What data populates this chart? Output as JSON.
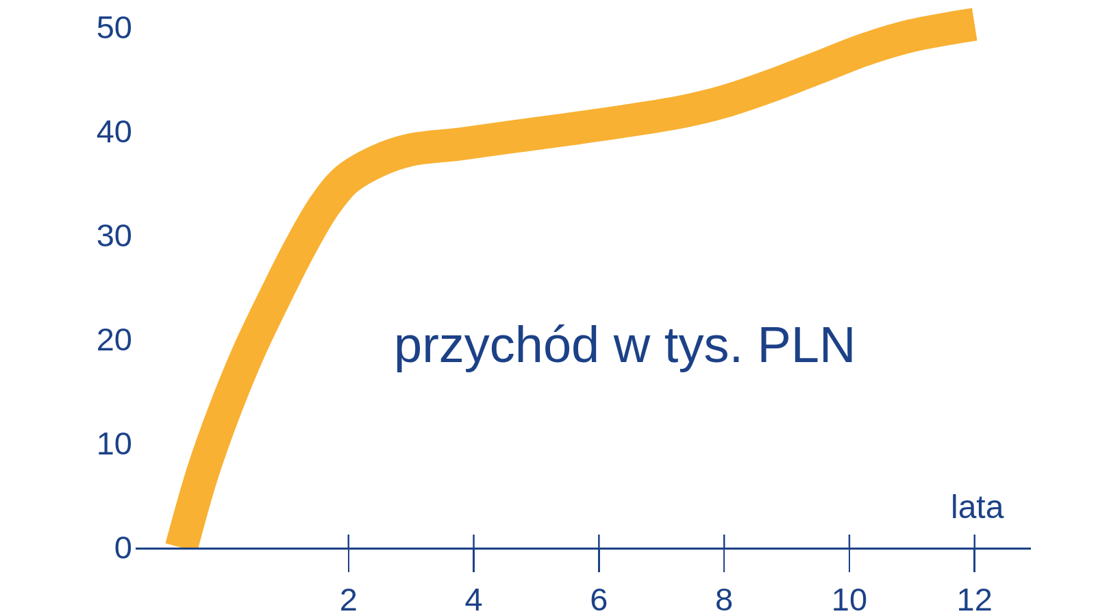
{
  "chart_data": {
    "type": "line",
    "xlabel": "lata",
    "ylabel": "przychód w tys. PLN",
    "x": [
      -0.67,
      -0.33,
      0.03,
      0.42,
      0.85,
      1.23,
      1.62,
      1.97,
      2.48,
      2.97,
      3.8,
      4.64,
      5.5,
      6.32,
      7.34,
      8.07,
      8.8,
      9.53,
      10.26,
      10.99,
      11.5,
      12.0
    ],
    "series": [
      {
        "color": "#f8b133",
        "values": [
          0,
          7.2,
          13.3,
          19.0,
          24.4,
          28.9,
          32.9,
          35.4,
          37.2,
          38.2,
          38.8,
          39.5,
          40.2,
          40.9,
          41.9,
          43.0,
          44.5,
          46.2,
          47.9,
          49.2,
          49.8,
          50.3
        ]
      }
    ],
    "xlim": [
      -1.4,
      12.9
    ],
    "ylim": [
      0,
      52.5
    ],
    "xticks": [
      2,
      4,
      6,
      8,
      10,
      12
    ],
    "yticks": [
      0,
      10,
      20,
      30,
      40,
      50
    ],
    "line_style": "solid"
  }
}
